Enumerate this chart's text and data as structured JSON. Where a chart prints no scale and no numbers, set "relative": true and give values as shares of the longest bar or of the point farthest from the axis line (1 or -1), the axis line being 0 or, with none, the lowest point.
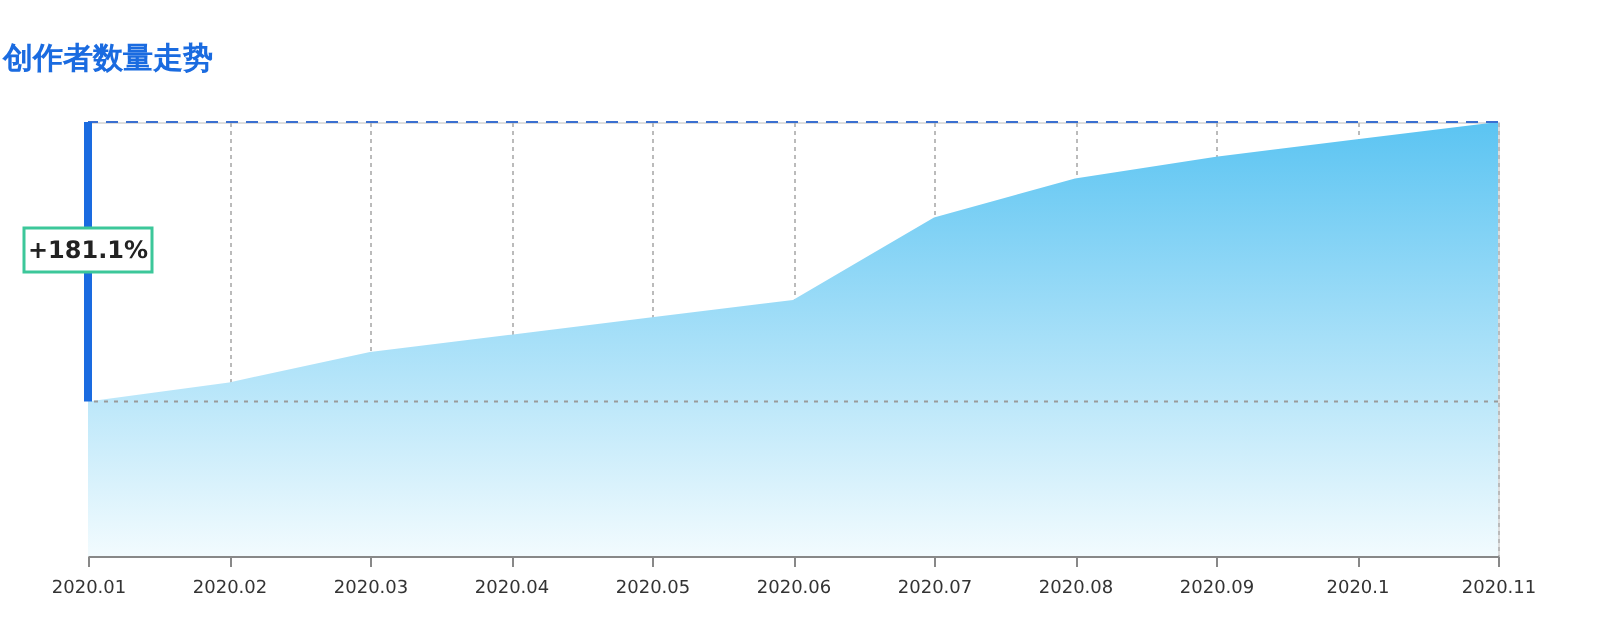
{
  "chart_data": {
    "type": "area",
    "title": "创作者数量走势",
    "relative": true,
    "categories": [
      "2020.01",
      "2020.02",
      "2020.03",
      "2020.04",
      "2020.05",
      "2020.06",
      "2020.07",
      "2020.08",
      "2020.09",
      "2020.1",
      "2020.11"
    ],
    "series": [
      {
        "color": "#5bc4f2",
        "values": [
          0.356,
          0.4,
          0.47,
          0.51,
          0.55,
          0.59,
          0.78,
          0.87,
          0.92,
          0.96,
          1
        ]
      }
    ],
    "ref_lines": [
      {
        "axis": "y",
        "value": 1,
        "color": "#3a6fd0",
        "line_style": "dashed"
      },
      {
        "axis": "y",
        "value": 0.356,
        "color": "#9a9a9a",
        "line_style": "dotted"
      }
    ],
    "annotations": [
      "+181.1%"
    ],
    "grid": "x"
  }
}
